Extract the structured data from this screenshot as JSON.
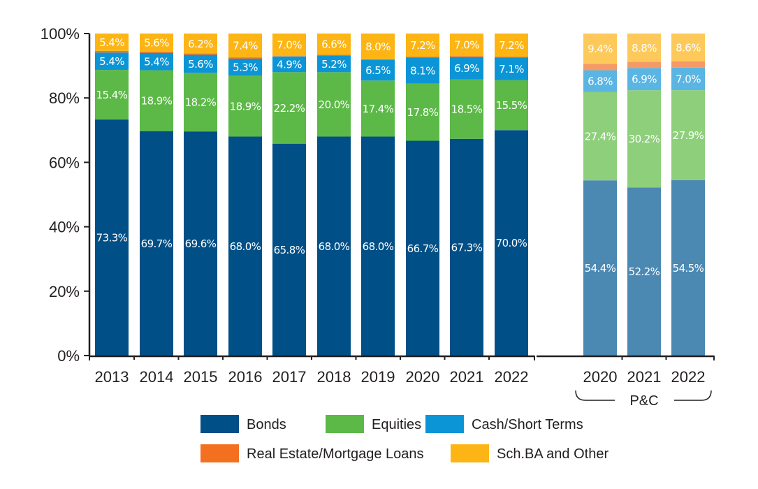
{
  "chart_data": {
    "type": "bar",
    "stacked": true,
    "ylim": [
      0,
      100
    ],
    "yticks": [
      "0%",
      "20%",
      "40%",
      "60%",
      "80%",
      "100%"
    ],
    "categories": [
      "2013",
      "2014",
      "2015",
      "2016",
      "2017",
      "2018",
      "2019",
      "2020",
      "2021",
      "2022",
      "2020",
      "2021",
      "2022"
    ],
    "group_label": "P&C",
    "group_range": [
      10,
      12
    ],
    "series": [
      {
        "name": "Bonds",
        "color": "#004f86",
        "color_pc": "#4b88b2",
        "values": [
          73.3,
          69.7,
          69.6,
          68.0,
          65.8,
          68.0,
          68.0,
          66.7,
          67.3,
          70.0,
          54.4,
          52.2,
          54.5
        ],
        "labels": [
          "73.3%",
          "69.7%",
          "69.6%",
          "68.0%",
          "65.8%",
          "68.0%",
          "68.0%",
          "66.7%",
          "67.3%",
          "70.0%",
          "54.4%",
          "52.2%",
          "54.5%"
        ]
      },
      {
        "name": "Equities",
        "color": "#5cb947",
        "color_pc": "#8ecf7b",
        "values": [
          15.4,
          18.9,
          18.2,
          18.9,
          22.2,
          20.0,
          17.4,
          17.8,
          18.5,
          15.5,
          27.4,
          30.2,
          27.9
        ],
        "labels": [
          "15.4%",
          "18.9%",
          "18.2%",
          "18.9%",
          "22.2%",
          "20.0%",
          "17.4%",
          "17.8%",
          "18.5%",
          "15.5%",
          "27.4%",
          "30.2%",
          "27.9%"
        ]
      },
      {
        "name": "Cash/Short Terms",
        "color": "#0c95d6",
        "color_pc": "#5ab5e3",
        "values": [
          5.4,
          5.4,
          5.6,
          5.3,
          4.9,
          5.2,
          6.5,
          8.1,
          6.9,
          7.1,
          6.8,
          6.9,
          7.0
        ],
        "labels": [
          "5.4%",
          "5.4%",
          "5.6%",
          "5.3%",
          "4.9%",
          "5.2%",
          "6.5%",
          "8.1%",
          "6.9%",
          "7.1%",
          "6.8%",
          "6.9%",
          "7.0%"
        ]
      },
      {
        "name": "Real Estate/Mortgage Loans",
        "color": "#f37021",
        "color_pc": "#f59a67",
        "values": [
          0.5,
          0.4,
          0.4,
          0.4,
          0.1,
          0.2,
          0.1,
          0.2,
          0.3,
          0.2,
          2.0,
          1.9,
          2.0
        ],
        "labels": [
          "",
          "",
          "",
          "",
          "",
          "",
          "",
          "",
          "",
          "",
          "",
          "",
          ""
        ]
      },
      {
        "name": "Sch.BA and Other",
        "color": "#fdb515",
        "color_pc": "#fdc95a",
        "values": [
          5.4,
          5.6,
          6.2,
          7.4,
          7.0,
          6.6,
          8.0,
          7.2,
          7.0,
          7.2,
          9.4,
          8.8,
          8.6
        ],
        "labels": [
          "5.4%",
          "5.6%",
          "6.2%",
          "7.4%",
          "7.0%",
          "6.6%",
          "8.0%",
          "7.2%",
          "7.0%",
          "7.2%",
          "9.4%",
          "8.8%",
          "8.6%"
        ]
      }
    ],
    "legend": [
      "Bonds",
      "Equities",
      "Cash/Short Terms",
      "Real Estate/Mortgage Loans",
      "Sch.BA and Other"
    ],
    "legend_placement": "bottom"
  }
}
